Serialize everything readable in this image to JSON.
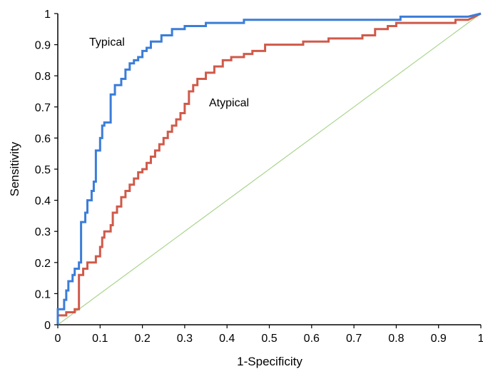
{
  "chart_data": {
    "type": "line",
    "title": "",
    "xlabel": "1-Specificity",
    "ylabel": "Sensitivity",
    "xlim": [
      0,
      1
    ],
    "ylim": [
      0,
      1
    ],
    "grid": false,
    "x_ticks": [
      "0",
      "0.1",
      "0.2",
      "0.3",
      "0.4",
      "0.5",
      "0.6",
      "0.7",
      "0.8",
      "0.9",
      "1"
    ],
    "y_ticks": [
      "0",
      "0.1",
      "0.2",
      "0.3",
      "0.4",
      "0.5",
      "0.6",
      "0.7",
      "0.8",
      "0.9",
      "1"
    ],
    "annotations": [
      {
        "text": "Typical",
        "series": "typical"
      },
      {
        "text": "Atypical",
        "series": "atypical"
      }
    ],
    "series": [
      {
        "id": "typical",
        "color": "#3b7dd8",
        "step": true,
        "points": [
          [
            0,
            0
          ],
          [
            0,
            0.05
          ],
          [
            0.015,
            0.05
          ],
          [
            0.015,
            0.08
          ],
          [
            0.02,
            0.08
          ],
          [
            0.02,
            0.11
          ],
          [
            0.025,
            0.11
          ],
          [
            0.025,
            0.14
          ],
          [
            0.035,
            0.14
          ],
          [
            0.035,
            0.16
          ],
          [
            0.04,
            0.16
          ],
          [
            0.04,
            0.18
          ],
          [
            0.05,
            0.18
          ],
          [
            0.05,
            0.2
          ],
          [
            0.055,
            0.2
          ],
          [
            0.055,
            0.33
          ],
          [
            0.065,
            0.33
          ],
          [
            0.065,
            0.36
          ],
          [
            0.07,
            0.36
          ],
          [
            0.07,
            0.4
          ],
          [
            0.08,
            0.4
          ],
          [
            0.08,
            0.43
          ],
          [
            0.085,
            0.43
          ],
          [
            0.085,
            0.46
          ],
          [
            0.09,
            0.46
          ],
          [
            0.09,
            0.56
          ],
          [
            0.1,
            0.56
          ],
          [
            0.1,
            0.6
          ],
          [
            0.105,
            0.6
          ],
          [
            0.105,
            0.64
          ],
          [
            0.11,
            0.64
          ],
          [
            0.11,
            0.65
          ],
          [
            0.125,
            0.65
          ],
          [
            0.125,
            0.74
          ],
          [
            0.135,
            0.74
          ],
          [
            0.135,
            0.77
          ],
          [
            0.15,
            0.77
          ],
          [
            0.15,
            0.79
          ],
          [
            0.16,
            0.79
          ],
          [
            0.16,
            0.82
          ],
          [
            0.17,
            0.82
          ],
          [
            0.17,
            0.84
          ],
          [
            0.18,
            0.84
          ],
          [
            0.18,
            0.85
          ],
          [
            0.19,
            0.85
          ],
          [
            0.19,
            0.86
          ],
          [
            0.2,
            0.86
          ],
          [
            0.2,
            0.88
          ],
          [
            0.21,
            0.88
          ],
          [
            0.21,
            0.89
          ],
          [
            0.22,
            0.89
          ],
          [
            0.22,
            0.91
          ],
          [
            0.245,
            0.91
          ],
          [
            0.245,
            0.93
          ],
          [
            0.27,
            0.93
          ],
          [
            0.27,
            0.95
          ],
          [
            0.3,
            0.95
          ],
          [
            0.3,
            0.96
          ],
          [
            0.35,
            0.96
          ],
          [
            0.35,
            0.97
          ],
          [
            0.44,
            0.97
          ],
          [
            0.44,
            0.98
          ],
          [
            0.81,
            0.98
          ],
          [
            0.81,
            0.99
          ],
          [
            0.97,
            0.99
          ],
          [
            1,
            1
          ]
        ]
      },
      {
        "id": "atypical",
        "color": "#d05a4a",
        "step": true,
        "points": [
          [
            0,
            0
          ],
          [
            0,
            0.03
          ],
          [
            0.02,
            0.03
          ],
          [
            0.02,
            0.04
          ],
          [
            0.04,
            0.04
          ],
          [
            0.04,
            0.05
          ],
          [
            0.05,
            0.05
          ],
          [
            0.05,
            0.16
          ],
          [
            0.06,
            0.16
          ],
          [
            0.06,
            0.18
          ],
          [
            0.07,
            0.18
          ],
          [
            0.07,
            0.2
          ],
          [
            0.09,
            0.2
          ],
          [
            0.09,
            0.22
          ],
          [
            0.1,
            0.22
          ],
          [
            0.1,
            0.25
          ],
          [
            0.105,
            0.25
          ],
          [
            0.105,
            0.28
          ],
          [
            0.11,
            0.28
          ],
          [
            0.11,
            0.3
          ],
          [
            0.125,
            0.3
          ],
          [
            0.125,
            0.32
          ],
          [
            0.13,
            0.32
          ],
          [
            0.13,
            0.36
          ],
          [
            0.14,
            0.36
          ],
          [
            0.14,
            0.38
          ],
          [
            0.15,
            0.38
          ],
          [
            0.15,
            0.41
          ],
          [
            0.16,
            0.41
          ],
          [
            0.16,
            0.43
          ],
          [
            0.17,
            0.43
          ],
          [
            0.17,
            0.45
          ],
          [
            0.18,
            0.45
          ],
          [
            0.18,
            0.47
          ],
          [
            0.19,
            0.47
          ],
          [
            0.19,
            0.49
          ],
          [
            0.2,
            0.49
          ],
          [
            0.2,
            0.5
          ],
          [
            0.21,
            0.5
          ],
          [
            0.21,
            0.52
          ],
          [
            0.22,
            0.52
          ],
          [
            0.22,
            0.54
          ],
          [
            0.23,
            0.54
          ],
          [
            0.23,
            0.56
          ],
          [
            0.24,
            0.56
          ],
          [
            0.24,
            0.58
          ],
          [
            0.25,
            0.58
          ],
          [
            0.25,
            0.6
          ],
          [
            0.26,
            0.6
          ],
          [
            0.26,
            0.62
          ],
          [
            0.27,
            0.62
          ],
          [
            0.27,
            0.64
          ],
          [
            0.28,
            0.64
          ],
          [
            0.28,
            0.66
          ],
          [
            0.29,
            0.66
          ],
          [
            0.29,
            0.68
          ],
          [
            0.3,
            0.68
          ],
          [
            0.3,
            0.71
          ],
          [
            0.31,
            0.71
          ],
          [
            0.31,
            0.75
          ],
          [
            0.32,
            0.75
          ],
          [
            0.32,
            0.77
          ],
          [
            0.33,
            0.77
          ],
          [
            0.33,
            0.79
          ],
          [
            0.35,
            0.79
          ],
          [
            0.35,
            0.81
          ],
          [
            0.37,
            0.81
          ],
          [
            0.37,
            0.83
          ],
          [
            0.39,
            0.83
          ],
          [
            0.39,
            0.85
          ],
          [
            0.41,
            0.85
          ],
          [
            0.41,
            0.86
          ],
          [
            0.44,
            0.86
          ],
          [
            0.44,
            0.87
          ],
          [
            0.46,
            0.87
          ],
          [
            0.46,
            0.88
          ],
          [
            0.49,
            0.88
          ],
          [
            0.49,
            0.9
          ],
          [
            0.58,
            0.9
          ],
          [
            0.58,
            0.91
          ],
          [
            0.64,
            0.91
          ],
          [
            0.64,
            0.92
          ],
          [
            0.72,
            0.92
          ],
          [
            0.72,
            0.93
          ],
          [
            0.75,
            0.93
          ],
          [
            0.75,
            0.95
          ],
          [
            0.78,
            0.95
          ],
          [
            0.78,
            0.96
          ],
          [
            0.8,
            0.96
          ],
          [
            0.8,
            0.97
          ],
          [
            0.94,
            0.97
          ],
          [
            0.94,
            0.98
          ],
          [
            0.97,
            0.98
          ],
          [
            1,
            1
          ]
        ]
      },
      {
        "id": "reference",
        "color": "#a8d48c",
        "step": false,
        "points": [
          [
            0,
            0
          ],
          [
            1,
            1
          ]
        ]
      }
    ]
  }
}
